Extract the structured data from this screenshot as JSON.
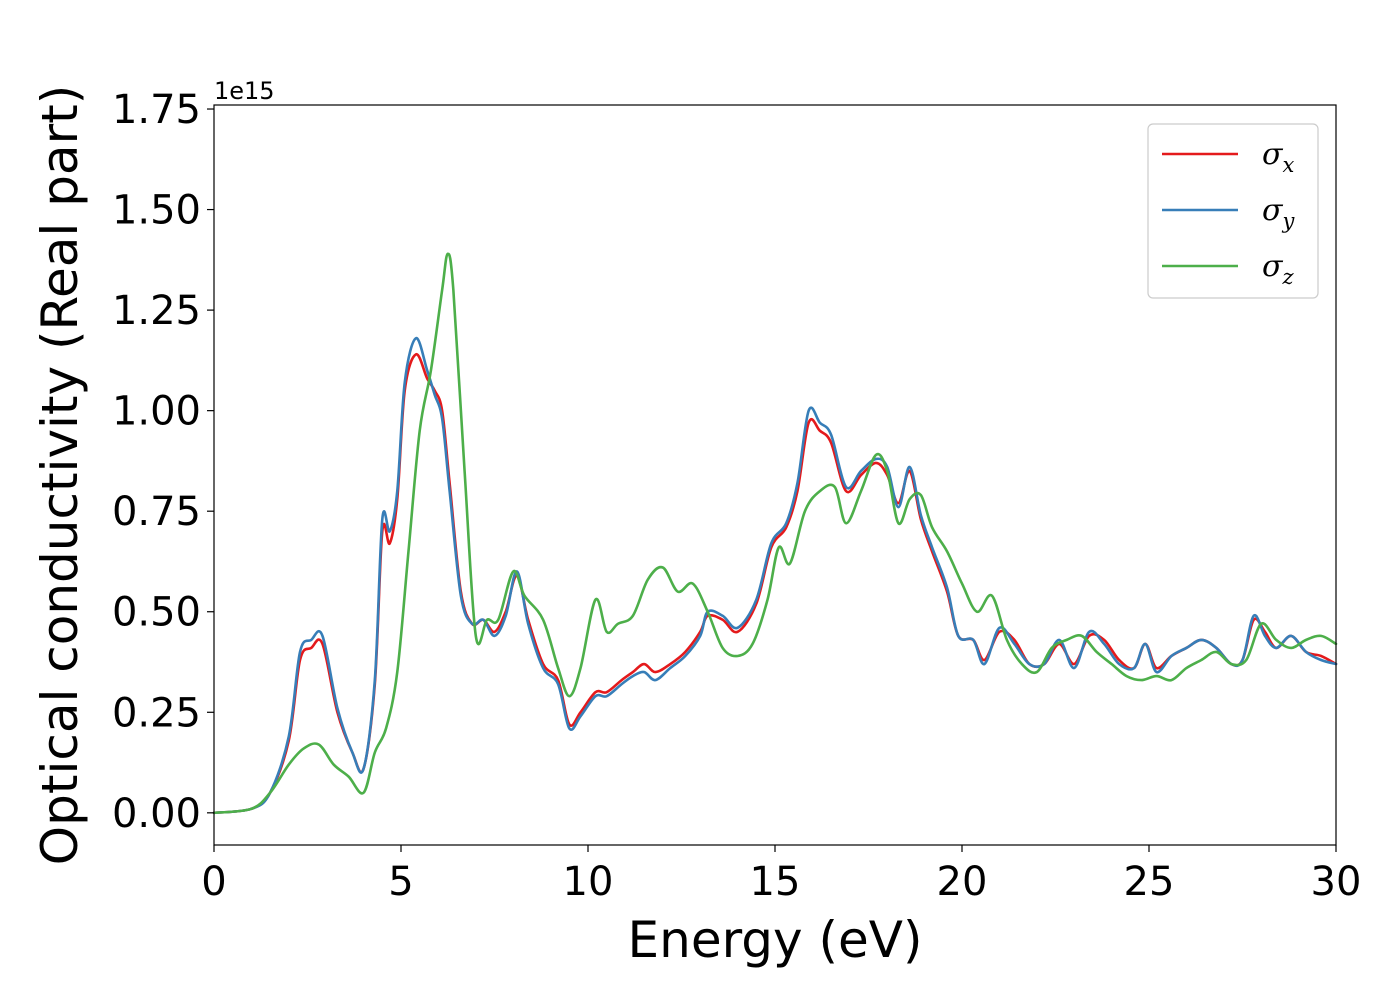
{
  "chart_data": {
    "type": "line",
    "title": "",
    "xlabel": "Energy (eV)",
    "ylabel": "Optical conductivity (Real part)",
    "y_offset_text": "1e15",
    "y_multiplier": 1000000000000000.0,
    "xlim": [
      0,
      30
    ],
    "ylim": [
      -0.08,
      1.76
    ],
    "xticks": [
      0,
      5,
      10,
      15,
      20,
      25,
      30
    ],
    "xtick_labels": [
      "0",
      "5",
      "10",
      "15",
      "20",
      "25",
      "30"
    ],
    "yticks": [
      0.0,
      0.25,
      0.5,
      0.75,
      1.0,
      1.25,
      1.5,
      1.75
    ],
    "ytick_labels": [
      "0.00",
      "0.25",
      "0.50",
      "0.75",
      "1.00",
      "1.25",
      "1.50",
      "1.75"
    ],
    "grid": false,
    "legend_position": "upper-right",
    "series": [
      {
        "name": "σx",
        "symbol": "σ",
        "subscript": "x",
        "color": "#e41a1c",
        "x": [
          0,
          1,
          1.5,
          2,
          2.3,
          2.6,
          2.9,
          3.3,
          3.7,
          4,
          4.3,
          4.5,
          4.7,
          4.9,
          5.1,
          5.4,
          5.7,
          5.9,
          6.1,
          6.3,
          6.6,
          6.9,
          7.2,
          7.5,
          7.8,
          8.1,
          8.4,
          8.8,
          9.2,
          9.5,
          9.8,
          10.2,
          10.5,
          10.9,
          11.2,
          11.5,
          11.8,
          12.2,
          12.6,
          13,
          13.2,
          13.6,
          14,
          14.5,
          14.9,
          15.3,
          15.6,
          15.9,
          16.2,
          16.5,
          16.9,
          17.3,
          17.7,
          18,
          18.3,
          18.6,
          18.9,
          19.2,
          19.6,
          19.9,
          20.3,
          20.6,
          21,
          21.4,
          21.8,
          22.2,
          22.6,
          23,
          23.4,
          23.8,
          24.2,
          24.6,
          24.9,
          25.2,
          25.6,
          26,
          26.4,
          26.8,
          27.2,
          27.5,
          27.8,
          28.1,
          28.4,
          28.8,
          29.2,
          29.6,
          30
        ],
        "y": [
          0,
          0.01,
          0.05,
          0.18,
          0.38,
          0.41,
          0.42,
          0.25,
          0.15,
          0.11,
          0.32,
          0.7,
          0.67,
          0.78,
          1.05,
          1.14,
          1.08,
          1.05,
          1.0,
          0.82,
          0.55,
          0.47,
          0.48,
          0.45,
          0.5,
          0.59,
          0.48,
          0.37,
          0.33,
          0.22,
          0.25,
          0.3,
          0.3,
          0.33,
          0.35,
          0.37,
          0.35,
          0.37,
          0.4,
          0.45,
          0.49,
          0.48,
          0.45,
          0.52,
          0.66,
          0.71,
          0.8,
          0.97,
          0.95,
          0.92,
          0.8,
          0.84,
          0.87,
          0.84,
          0.77,
          0.85,
          0.73,
          0.65,
          0.55,
          0.44,
          0.43,
          0.38,
          0.45,
          0.43,
          0.37,
          0.37,
          0.42,
          0.37,
          0.44,
          0.43,
          0.38,
          0.36,
          0.42,
          0.36,
          0.39,
          0.41,
          0.43,
          0.41,
          0.37,
          0.38,
          0.48,
          0.45,
          0.41,
          0.44,
          0.4,
          0.39,
          0.37
        ]
      },
      {
        "name": "σy",
        "symbol": "σ",
        "subscript": "y",
        "color": "#377eb8",
        "x": [
          0,
          1,
          1.5,
          2,
          2.3,
          2.6,
          2.9,
          3.3,
          3.7,
          4,
          4.3,
          4.5,
          4.7,
          4.9,
          5.1,
          5.4,
          5.7,
          5.9,
          6.1,
          6.3,
          6.6,
          6.9,
          7.2,
          7.5,
          7.8,
          8.1,
          8.4,
          8.8,
          9.2,
          9.5,
          9.8,
          10.2,
          10.5,
          10.9,
          11.2,
          11.5,
          11.8,
          12.2,
          12.6,
          13,
          13.2,
          13.6,
          14,
          14.5,
          14.9,
          15.3,
          15.6,
          15.9,
          16.2,
          16.5,
          16.9,
          17.3,
          17.7,
          18,
          18.3,
          18.6,
          18.9,
          19.2,
          19.6,
          19.9,
          20.3,
          20.6,
          21,
          21.4,
          21.8,
          22.2,
          22.6,
          23,
          23.4,
          23.8,
          24.2,
          24.6,
          24.9,
          25.2,
          25.6,
          26,
          26.4,
          26.8,
          27.2,
          27.5,
          27.8,
          28.1,
          28.4,
          28.8,
          29.2,
          29.6,
          30
        ],
        "y": [
          0,
          0.01,
          0.05,
          0.19,
          0.4,
          0.43,
          0.44,
          0.26,
          0.15,
          0.11,
          0.33,
          0.73,
          0.7,
          0.8,
          1.07,
          1.18,
          1.1,
          1.04,
          0.98,
          0.8,
          0.54,
          0.47,
          0.48,
          0.44,
          0.49,
          0.6,
          0.47,
          0.36,
          0.32,
          0.21,
          0.24,
          0.29,
          0.29,
          0.32,
          0.34,
          0.35,
          0.33,
          0.36,
          0.39,
          0.44,
          0.5,
          0.49,
          0.46,
          0.53,
          0.67,
          0.72,
          0.82,
          1.0,
          0.97,
          0.94,
          0.81,
          0.85,
          0.88,
          0.86,
          0.76,
          0.86,
          0.74,
          0.66,
          0.56,
          0.44,
          0.43,
          0.37,
          0.46,
          0.42,
          0.37,
          0.37,
          0.43,
          0.36,
          0.45,
          0.42,
          0.37,
          0.36,
          0.42,
          0.35,
          0.39,
          0.41,
          0.43,
          0.41,
          0.37,
          0.38,
          0.49,
          0.44,
          0.41,
          0.44,
          0.4,
          0.38,
          0.37
        ]
      },
      {
        "name": "σz",
        "symbol": "σ",
        "subscript": "z",
        "color": "#4daf4a",
        "x": [
          0,
          1,
          1.5,
          2,
          2.4,
          2.8,
          3.2,
          3.6,
          4,
          4.3,
          4.6,
          4.9,
          5.2,
          5.5,
          5.8,
          6.1,
          6.25,
          6.4,
          6.7,
          7,
          7.3,
          7.6,
          8,
          8.3,
          8.8,
          9.2,
          9.5,
          9.8,
          10.2,
          10.5,
          10.8,
          11.2,
          11.6,
          12,
          12.4,
          12.8,
          13.2,
          13.6,
          14,
          14.4,
          14.8,
          15.1,
          15.4,
          15.8,
          16.2,
          16.6,
          16.9,
          17.3,
          17.7,
          18,
          18.3,
          18.6,
          18.9,
          19.2,
          19.6,
          20,
          20.4,
          20.8,
          21.2,
          21.6,
          22,
          22.4,
          22.8,
          23.2,
          23.6,
          24,
          24.4,
          24.8,
          25.2,
          25.6,
          26,
          26.4,
          26.8,
          27.2,
          27.6,
          28,
          28.4,
          28.8,
          29.2,
          29.6,
          30
        ],
        "y": [
          0,
          0.01,
          0.05,
          0.12,
          0.16,
          0.17,
          0.12,
          0.09,
          0.05,
          0.15,
          0.21,
          0.35,
          0.65,
          0.95,
          1.1,
          1.3,
          1.39,
          1.3,
          0.85,
          0.44,
          0.48,
          0.48,
          0.6,
          0.54,
          0.48,
          0.36,
          0.29,
          0.36,
          0.53,
          0.45,
          0.47,
          0.49,
          0.58,
          0.61,
          0.55,
          0.57,
          0.5,
          0.41,
          0.39,
          0.42,
          0.53,
          0.66,
          0.62,
          0.75,
          0.8,
          0.81,
          0.72,
          0.8,
          0.89,
          0.85,
          0.72,
          0.78,
          0.79,
          0.71,
          0.65,
          0.57,
          0.5,
          0.54,
          0.43,
          0.37,
          0.35,
          0.41,
          0.43,
          0.44,
          0.4,
          0.37,
          0.34,
          0.33,
          0.34,
          0.33,
          0.36,
          0.38,
          0.4,
          0.37,
          0.38,
          0.47,
          0.43,
          0.41,
          0.43,
          0.44,
          0.42
        ]
      }
    ]
  }
}
